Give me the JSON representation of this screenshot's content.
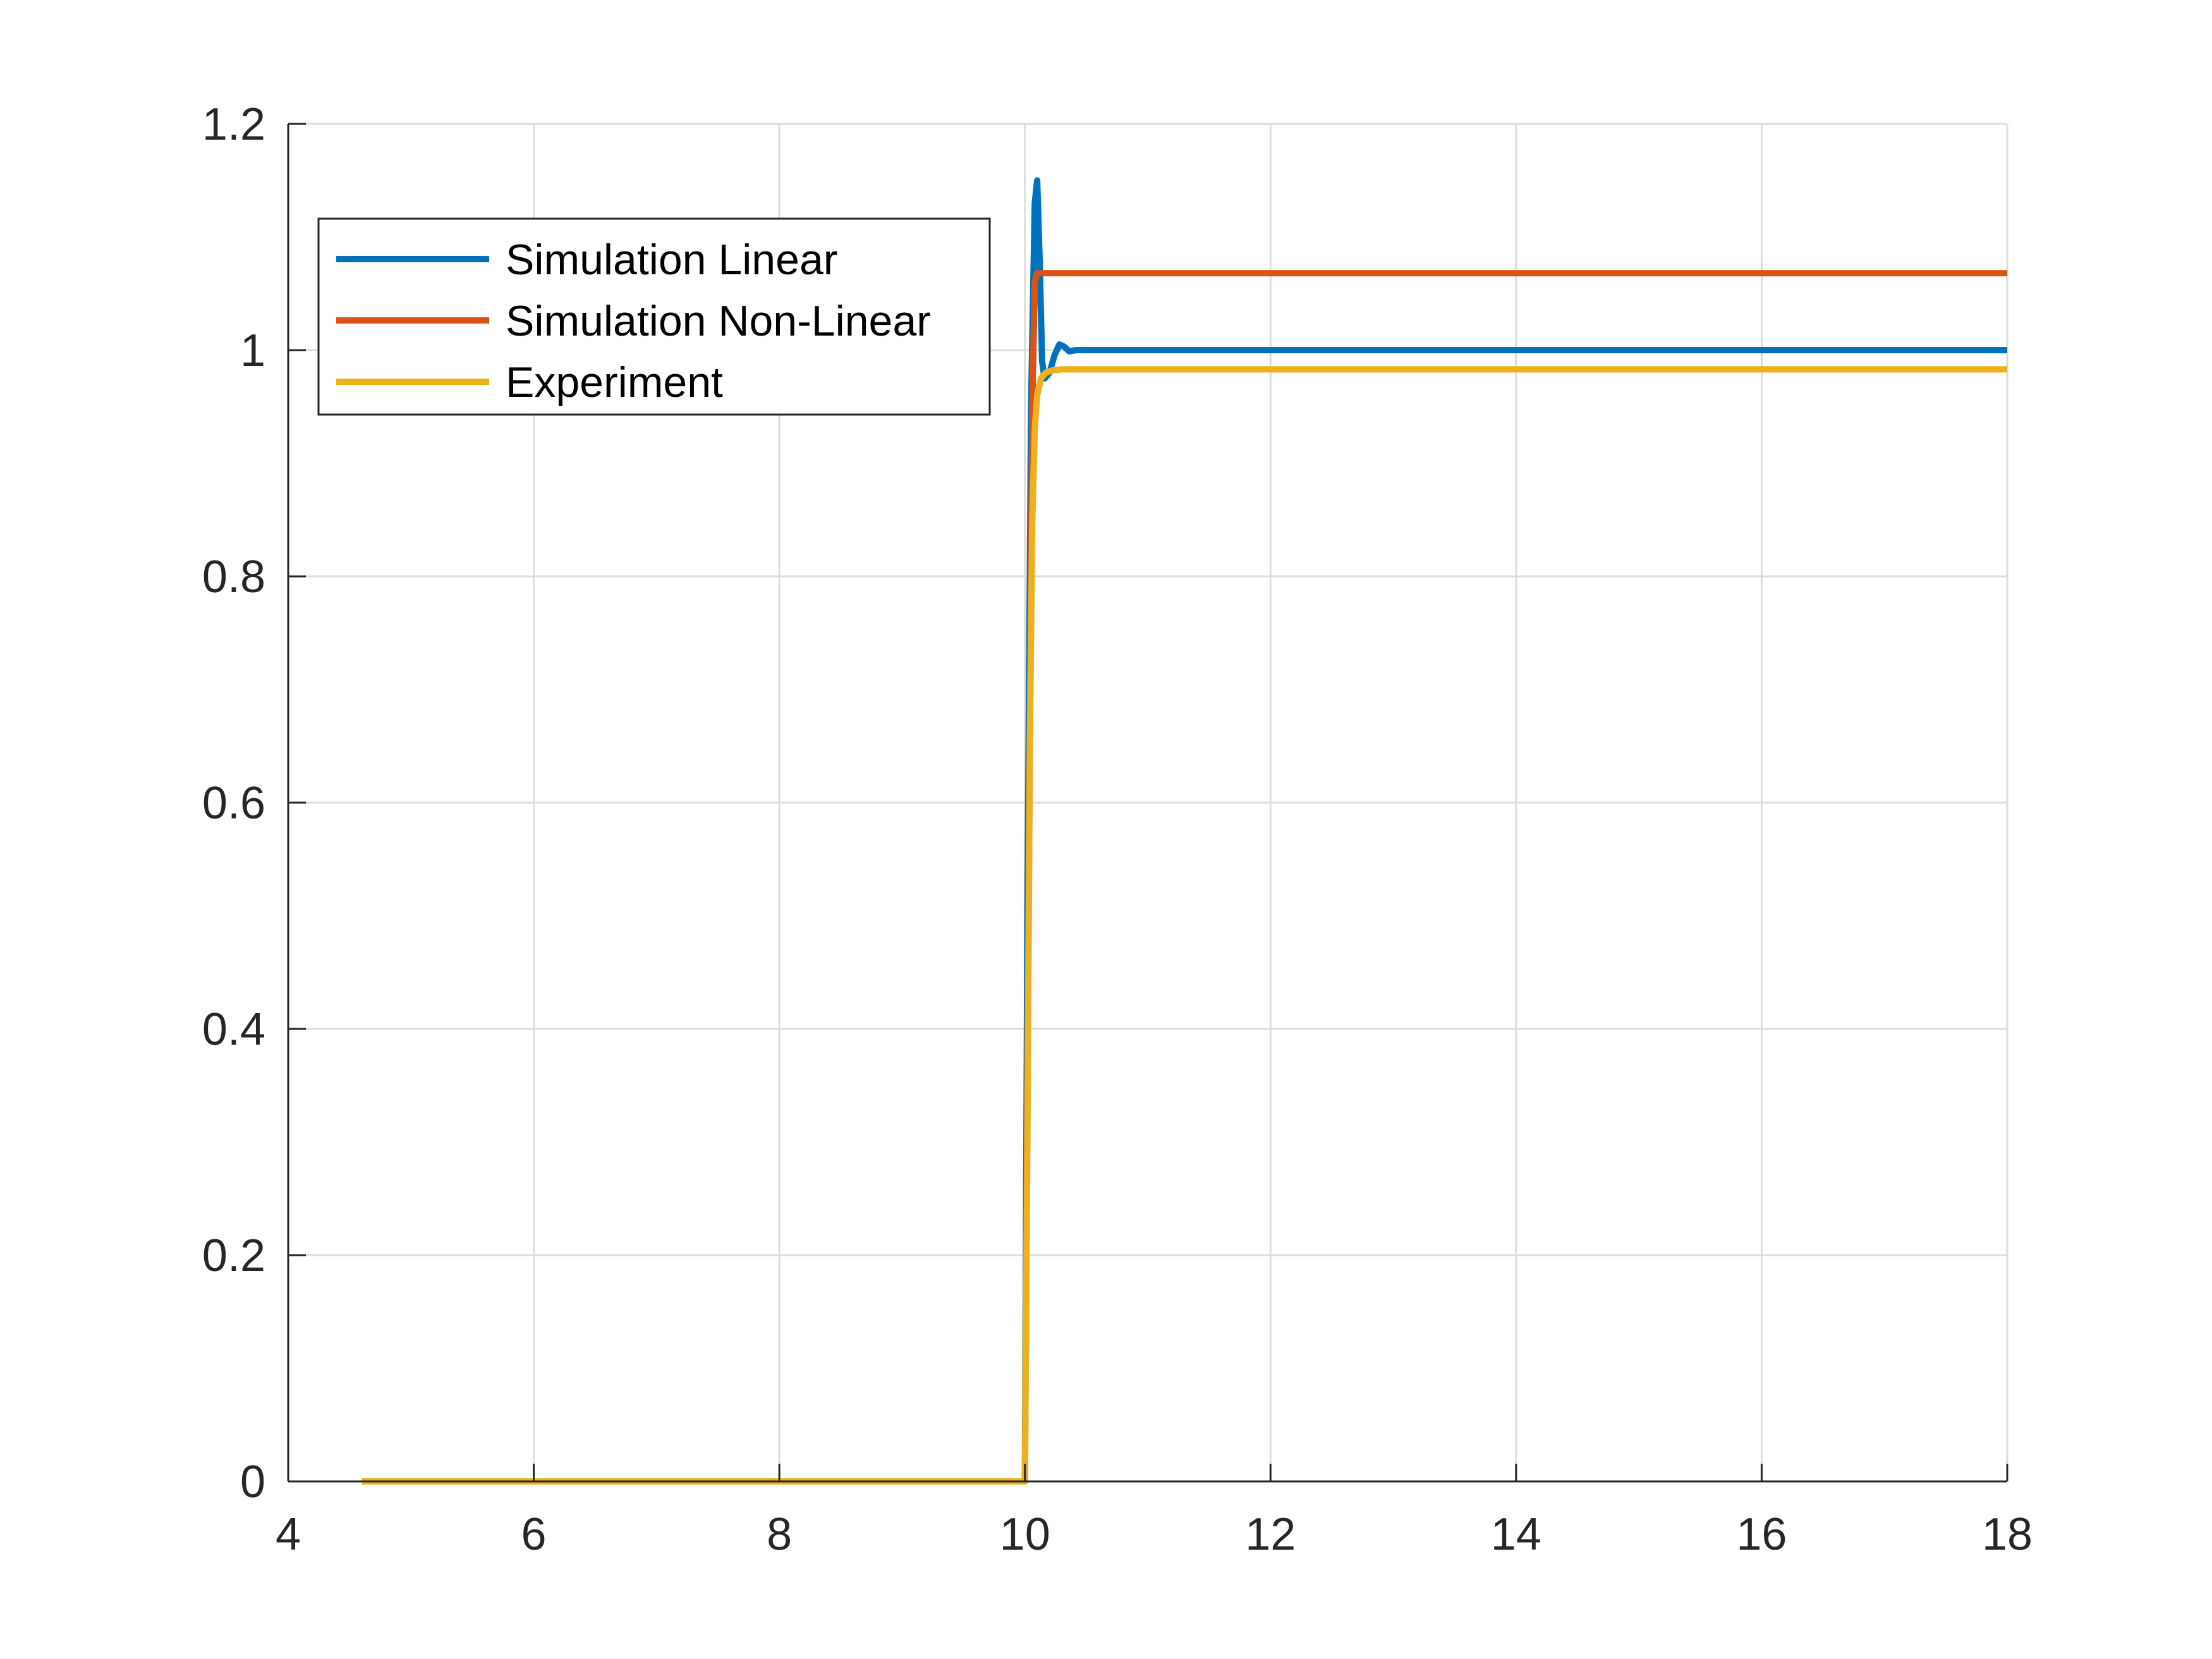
{
  "chart_data": {
    "type": "line",
    "title": "",
    "xlabel": "",
    "ylabel": "",
    "xlim": [
      4,
      18
    ],
    "ylim": [
      0,
      1.2
    ],
    "xticks": [
      4,
      6,
      8,
      10,
      12,
      14,
      16,
      18
    ],
    "yticks": [
      0,
      0.2,
      0.4,
      0.6,
      0.8,
      1,
      1.2
    ],
    "x_tick_labels": [
      "4",
      "6",
      "8",
      "10",
      "12",
      "14",
      "16",
      "18"
    ],
    "y_tick_labels": [
      "0",
      "0.2",
      "0.4",
      "0.6",
      "0.8",
      "1",
      "1.2"
    ],
    "grid": true,
    "legend_position": "top-left",
    "series": [
      {
        "name": "Simulation Linear",
        "color": "#0072BD",
        "x": [
          4.6,
          10.0,
          10.02,
          10.05,
          10.08,
          10.1,
          10.12,
          10.14,
          10.16,
          10.2,
          10.24,
          10.28,
          10.32,
          10.36,
          10.42,
          10.5,
          18
        ],
        "y": [
          0,
          0,
          0.5,
          0.95,
          1.13,
          1.15,
          1.08,
          0.99,
          0.975,
          0.98,
          0.995,
          1.005,
          1.003,
          0.999,
          1.0,
          1.0,
          1.0
        ]
      },
      {
        "name": "Simulation Non-Linear",
        "color": "#D95319",
        "x": [
          4.6,
          10.0,
          10.03,
          10.06,
          10.08,
          10.1,
          18
        ],
        "y": [
          0,
          0,
          0.5,
          0.95,
          1.06,
          1.068,
          1.068
        ]
      },
      {
        "name": "Experiment",
        "color": "#EDB120",
        "x": [
          4.6,
          10.0,
          10.02,
          10.04,
          10.06,
          10.08,
          10.1,
          10.13,
          10.17,
          10.22,
          10.3,
          18
        ],
        "y": [
          0,
          0,
          0.3,
          0.65,
          0.85,
          0.93,
          0.96,
          0.975,
          0.98,
          0.982,
          0.983,
          0.983
        ]
      }
    ]
  }
}
